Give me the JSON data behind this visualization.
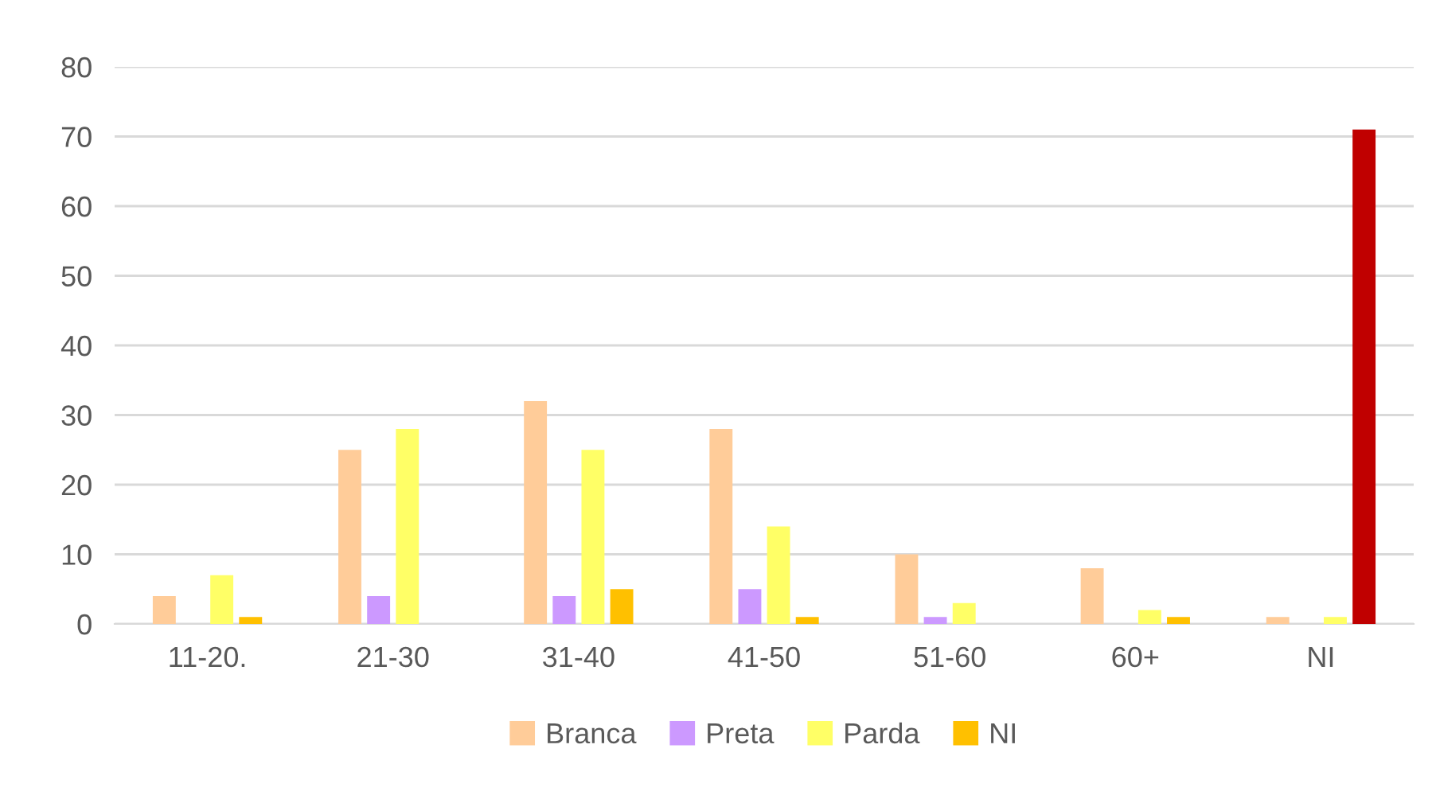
{
  "chart_data": {
    "type": "bar",
    "categories": [
      "11-20.",
      "21-30",
      "31-40",
      "41-50",
      "51-60",
      "60+",
      "NI"
    ],
    "series": [
      {
        "name": "Branca",
        "color": "#ffcc99",
        "values": [
          4,
          25,
          32,
          28,
          10,
          8,
          1
        ]
      },
      {
        "name": "Preta",
        "color": "#cc99ff",
        "values": [
          0,
          4,
          4,
          5,
          1,
          0,
          0
        ]
      },
      {
        "name": "Parda",
        "color": "#ffff66",
        "values": [
          7,
          28,
          25,
          14,
          3,
          2,
          1
        ]
      },
      {
        "name": "NI",
        "color": "#ffc000",
        "colors": [
          "#ffc000",
          "#ffc000",
          "#ffc000",
          "#ffc000",
          "#ffc000",
          "#ffc000",
          "#c00000"
        ],
        "values": [
          1,
          0,
          5,
          1,
          0,
          1,
          71
        ]
      }
    ],
    "ylim": [
      0,
      80
    ],
    "yticks": [
      0,
      10,
      20,
      30,
      40,
      50,
      60,
      70,
      80
    ],
    "grid": "y",
    "legend": "bottom"
  }
}
